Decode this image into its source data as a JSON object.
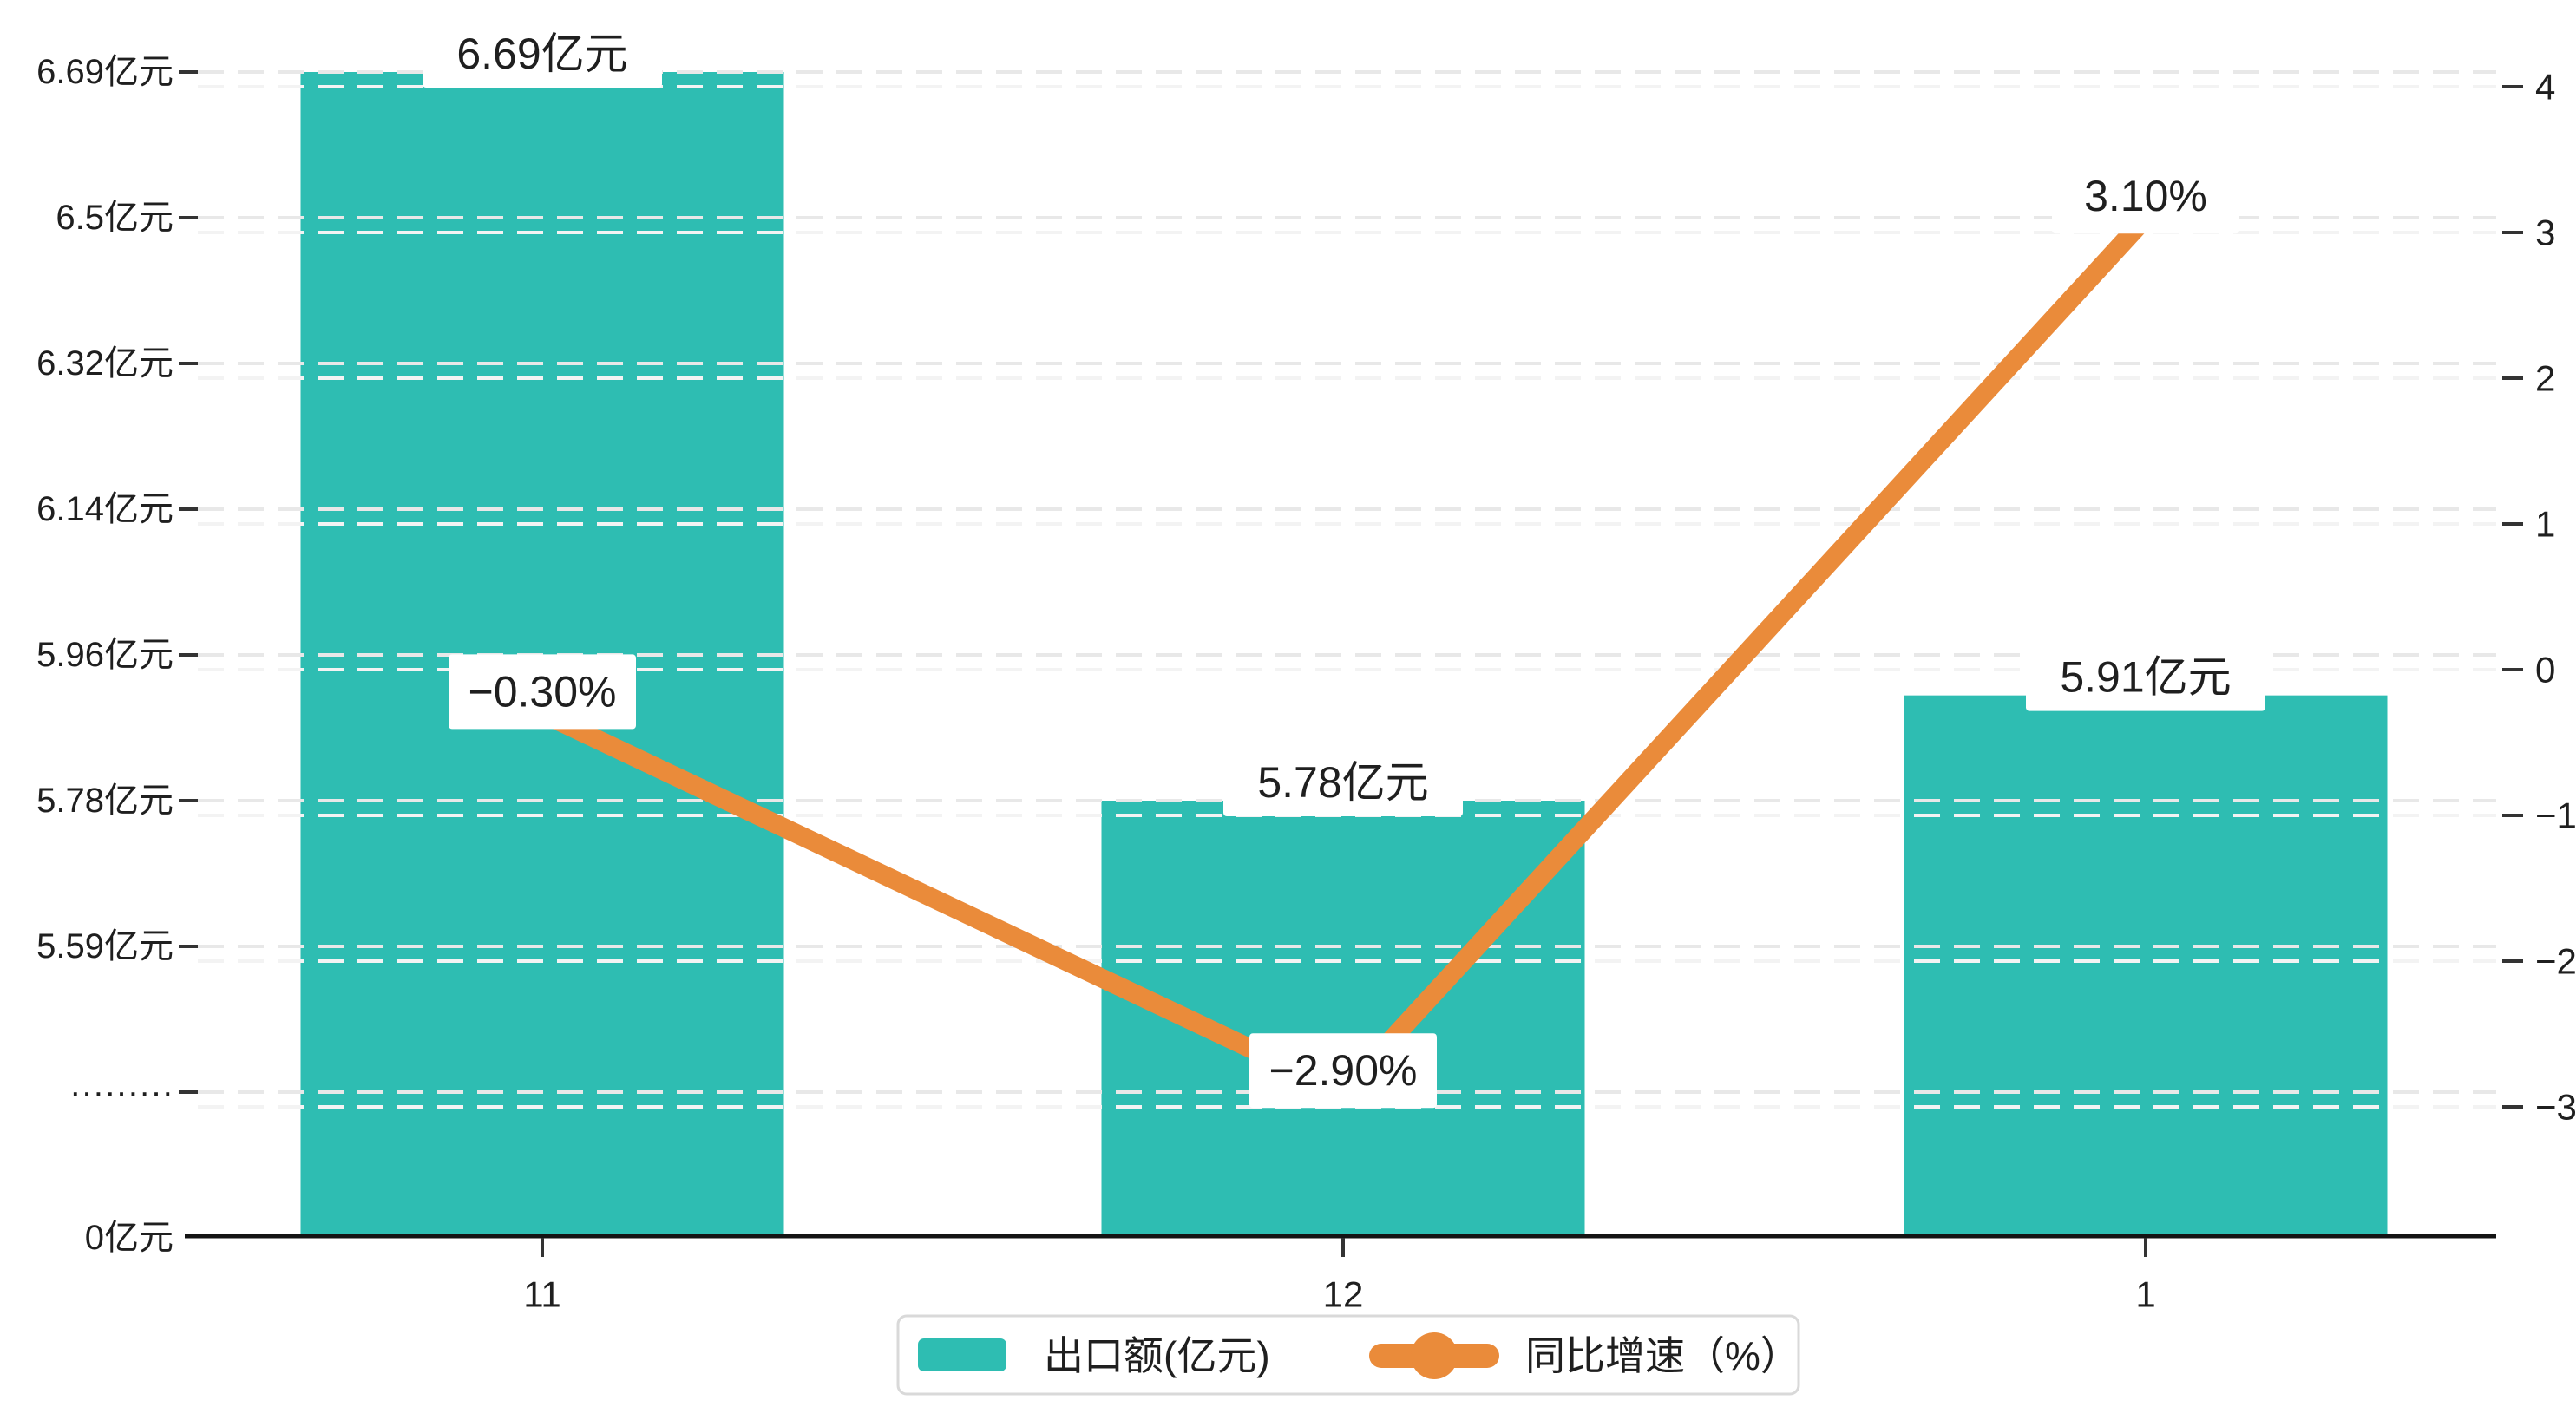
{
  "chart_data": {
    "type": "bar+line-combo",
    "categories": [
      "11",
      "12",
      "1"
    ],
    "series": [
      {
        "name": "出口额(亿元)",
        "type": "bar",
        "axis": "left",
        "values": [
          6.69,
          5.78,
          5.91
        ],
        "data_labels": [
          "6.69亿元",
          "5.78亿元",
          "5.91亿元"
        ],
        "color": "#2ebdb2"
      },
      {
        "name": "同比增速（%）",
        "type": "line",
        "axis": "right",
        "values": [
          -0.3,
          -2.9,
          3.1
        ],
        "data_labels": [
          "−0.30%",
          "−2.90%",
          "3.10%"
        ],
        "color": "#ea8b3a"
      }
    ],
    "left_axis": {
      "tick_labels": [
        "6.69亿元",
        "6.5亿元",
        "6.32亿元",
        "6.14亿元",
        "5.96亿元",
        "5.78亿元",
        "5.59亿元",
        "·········",
        "0亿元"
      ],
      "tick_values": [
        6.69,
        6.5,
        6.32,
        6.14,
        5.96,
        5.78,
        5.59,
        null,
        0
      ],
      "axis_break": true
    },
    "right_axis": {
      "tick_labels": [
        "4",
        "3",
        "2",
        "1",
        "0",
        "−1",
        "−2",
        "−3"
      ],
      "tick_values": [
        4,
        3,
        2,
        1,
        0,
        -1,
        -2,
        -3
      ]
    },
    "x_axis": {
      "tick_labels": [
        "11",
        "12",
        "1"
      ]
    },
    "legend": [
      {
        "label": "出口额(亿元)",
        "marker": "bar-swatch",
        "color": "#2ebdb2"
      },
      {
        "label": "同比增速（%）",
        "marker": "line-dot",
        "color": "#ea8b3a"
      }
    ],
    "grid": "dashed",
    "legend_position": "bottom-center"
  },
  "colors": {
    "bar": "#2ebdb2",
    "line": "#ea8b3a",
    "axis_line": "#141414",
    "tick_text": "#1f1f1f",
    "grid_major": "#e8e8e8",
    "grid_minor": "#f3f3f3",
    "label_bg": "#ffffff",
    "legend_border": "#d9d9d9",
    "background": "#ffffff"
  }
}
